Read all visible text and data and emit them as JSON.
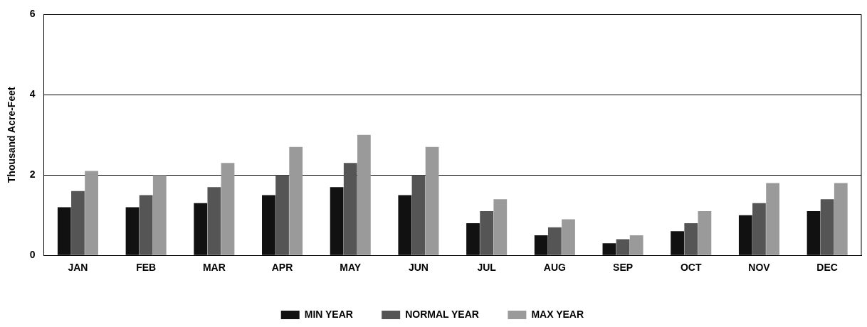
{
  "chart_data": {
    "type": "bar",
    "ylabel": "Thousand Acre-Feet",
    "categories": [
      "JAN",
      "FEB",
      "MAR",
      "APR",
      "MAY",
      "JUN",
      "JUL",
      "AUG",
      "SEP",
      "OCT",
      "NOV",
      "DEC"
    ],
    "series": [
      {
        "name": "MIN YEAR",
        "color": "#111111",
        "values": [
          1.2,
          1.2,
          1.3,
          1.5,
          1.7,
          1.5,
          0.8,
          0.5,
          0.3,
          0.6,
          1.0,
          1.1
        ]
      },
      {
        "name": "NORMAL YEAR",
        "color": "#555555",
        "values": [
          1.6,
          1.5,
          1.7,
          2.0,
          2.3,
          2.0,
          1.1,
          0.7,
          0.4,
          0.8,
          1.3,
          1.4
        ]
      },
      {
        "name": "MAX YEAR",
        "color": "#9a9a9a",
        "values": [
          2.1,
          2.0,
          2.3,
          2.7,
          3.0,
          2.7,
          1.4,
          0.9,
          0.5,
          1.1,
          1.8,
          1.8
        ]
      }
    ],
    "ylim": [
      0,
      6
    ],
    "yticks": [
      0,
      2,
      4,
      6
    ],
    "grid": "y",
    "legend": "bottom"
  }
}
